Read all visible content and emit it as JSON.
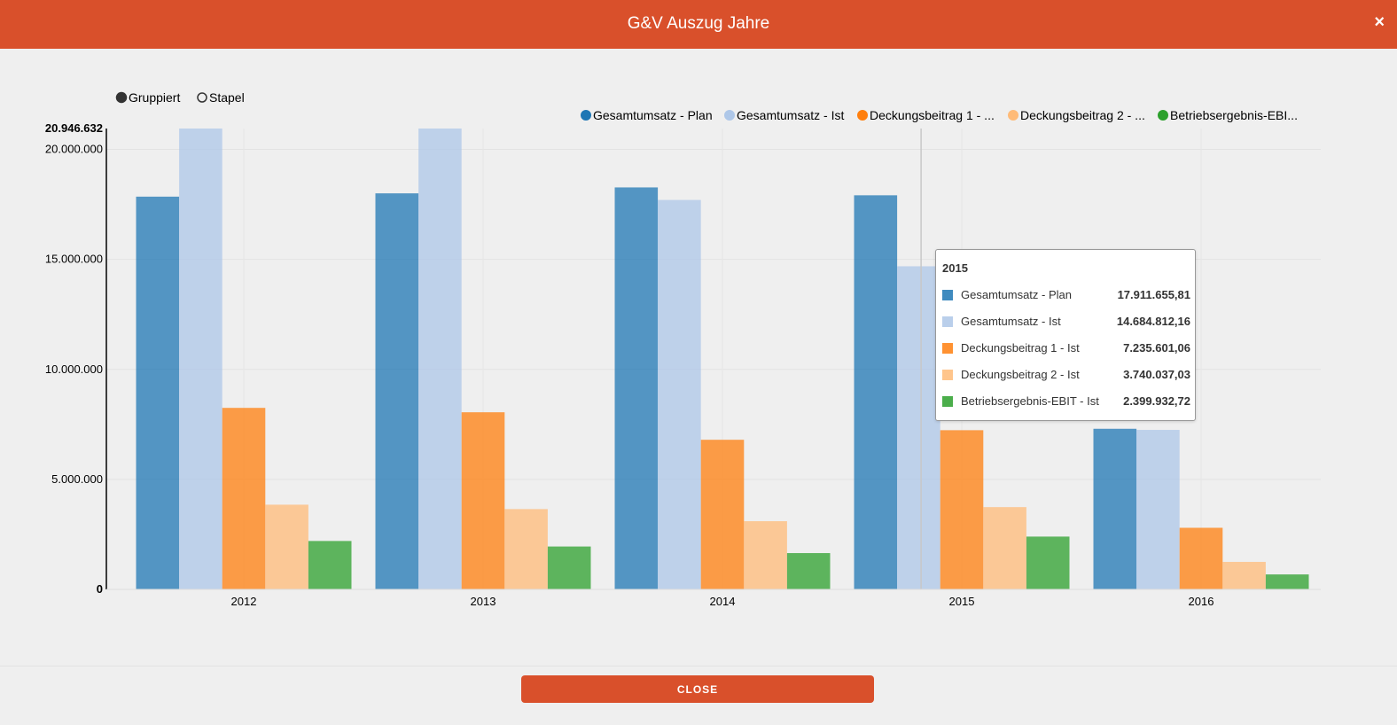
{
  "dialog": {
    "title": "G&V Auszug Jahre",
    "close_icon": "×",
    "close_label": "CLOSE"
  },
  "controls": {
    "grouped_label": "Gruppiert",
    "stacked_label": "Stapel",
    "selected": "grouped"
  },
  "chart_data": {
    "type": "bar",
    "categories": [
      "2012",
      "2013",
      "2014",
      "2015",
      "2016"
    ],
    "series": [
      {
        "name": "Gesamtumsatz - Plan",
        "legend_label": "Gesamtumsatz - Plan",
        "color": "#1f77b4",
        "values": [
          17850000,
          18000000,
          18270000,
          17911655.81,
          7300000
        ]
      },
      {
        "name": "Gesamtumsatz - Ist",
        "legend_label": "Gesamtumsatz - Ist",
        "color": "#aec7e8",
        "values": [
          20946632,
          20946632,
          17700000,
          14684812.16,
          7250000
        ]
      },
      {
        "name": "Deckungsbeitrag 1 - Ist",
        "legend_label": "Deckungsbeitrag 1 - ...",
        "color": "#ff7f0e",
        "values": [
          8250000,
          8050000,
          6800000,
          7235601.06,
          2800000
        ]
      },
      {
        "name": "Deckungsbeitrag 2 - Ist",
        "legend_label": "Deckungsbeitrag 2 - ...",
        "color": "#ffbb78",
        "values": [
          3850000,
          3650000,
          3100000,
          3740037.03,
          1250000
        ]
      },
      {
        "name": "Betriebsergebnis-EBIT - Ist",
        "legend_label": "Betriebsergebnis-EBI...",
        "color": "#2ca02c",
        "values": [
          2200000,
          1950000,
          1650000,
          2399932.72,
          680000
        ]
      }
    ],
    "ylim": [
      0,
      20946632
    ],
    "y_ticks": [
      {
        "value": 0,
        "label": "0"
      },
      {
        "value": 5000000,
        "label": "5.000.000"
      },
      {
        "value": 10000000,
        "label": "10.000.000"
      },
      {
        "value": 15000000,
        "label": "15.000.000"
      },
      {
        "value": 20000000,
        "label": "20.000.000"
      }
    ],
    "y_max_label": "20.946.632",
    "legend_position": "top-right",
    "grid": true,
    "tooltip": {
      "category": "2015",
      "rows": [
        {
          "name": "Gesamtumsatz - Plan",
          "value": "17.911.655,81",
          "color": "#1f77b4"
        },
        {
          "name": "Gesamtumsatz - Ist",
          "value": "14.684.812,16",
          "color": "#aec7e8"
        },
        {
          "name": "Deckungsbeitrag 1 - Ist",
          "value": "7.235.601,06",
          "color": "#ff7f0e"
        },
        {
          "name": "Deckungsbeitrag 2 - Ist",
          "value": "3.740.037,03",
          "color": "#ffbb78"
        },
        {
          "name": "Betriebsergebnis-EBIT - Ist",
          "value": "2.399.932,72",
          "color": "#2ca02c"
        }
      ]
    }
  }
}
